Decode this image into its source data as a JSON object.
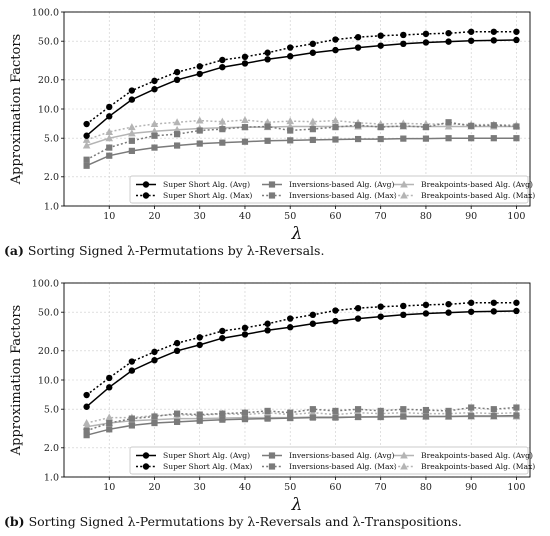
{
  "captions": [
    {
      "tag": "(a)",
      "text": "Sorting Signed λ-Permutations by λ-Reversals."
    },
    {
      "tag": "(b)",
      "text": "Sorting Signed λ-Permutations by λ-Reversals and λ-Transpositions."
    }
  ],
  "chart_data": [
    {
      "type": "line",
      "xlabel": "λ",
      "ylabel": "Approximation Factors",
      "yscale": "log",
      "xlim": [
        0,
        103
      ],
      "ylim": [
        1.0,
        100.0
      ],
      "xticks": [
        "10",
        "20",
        "30",
        "40",
        "50",
        "60",
        "70",
        "80",
        "90",
        "100"
      ],
      "yticks": [
        "1.0",
        "2.0",
        "5.0",
        "10.0",
        "20.0",
        "50.0",
        "100.0"
      ],
      "grid": true,
      "legend_position": "bottom-right",
      "x": [
        5,
        10,
        15,
        20,
        25,
        30,
        35,
        40,
        45,
        50,
        55,
        60,
        65,
        70,
        75,
        80,
        85,
        90,
        95,
        100
      ],
      "series": [
        {
          "name": "Super Short Alg. (Avg)",
          "color": "#000000",
          "dash": "solid",
          "marker": "circle",
          "values": [
            5.3,
            8.4,
            12.5,
            16.0,
            20.0,
            23.0,
            27.0,
            29.5,
            32.5,
            35.0,
            38.0,
            40.5,
            43.0,
            45.0,
            47.0,
            48.5,
            49.5,
            50.5,
            51.0,
            51.5
          ]
        },
        {
          "name": "Super Short Alg. (Max)",
          "color": "#000000",
          "dash": "dotted",
          "marker": "circle",
          "values": [
            7.0,
            10.5,
            15.5,
            19.5,
            24.0,
            27.5,
            32.0,
            34.5,
            38.0,
            43.0,
            47.0,
            52.0,
            55.0,
            57.0,
            58.0,
            59.5,
            60.5,
            62.5,
            62.5,
            62.5
          ]
        },
        {
          "name": "Inversions-based Alg. (Avg)",
          "color": "#7a7a7a",
          "dash": "solid",
          "marker": "square",
          "values": [
            2.6,
            3.3,
            3.7,
            4.0,
            4.2,
            4.4,
            4.5,
            4.6,
            4.7,
            4.75,
            4.8,
            4.85,
            4.9,
            4.9,
            4.95,
            4.95,
            5.0,
            5.0,
            5.0,
            5.0
          ]
        },
        {
          "name": "Inversions-based Alg. (Max)",
          "color": "#7a7a7a",
          "dash": "dotted",
          "marker": "square",
          "values": [
            3.0,
            4.0,
            4.7,
            5.3,
            5.5,
            6.0,
            6.2,
            6.5,
            6.6,
            6.0,
            6.2,
            6.5,
            6.8,
            6.5,
            6.7,
            6.5,
            7.3,
            6.7,
            6.8,
            6.6
          ]
        },
        {
          "name": "Breakpoints-based Alg. (Avg)",
          "color": "#b4b4b4",
          "dash": "solid",
          "marker": "triangle",
          "values": [
            4.2,
            5.0,
            5.6,
            5.9,
            6.1,
            6.3,
            6.4,
            6.5,
            6.5,
            6.6,
            6.6,
            6.6,
            6.6,
            6.6,
            6.6,
            6.6,
            6.6,
            6.6,
            6.6,
            6.6
          ]
        },
        {
          "name": "Breakpoints-based Alg. (Max)",
          "color": "#b4b4b4",
          "dash": "dotted",
          "marker": "triangle",
          "values": [
            4.8,
            5.8,
            6.5,
            7.0,
            7.3,
            7.6,
            7.4,
            7.7,
            7.3,
            7.5,
            7.4,
            7.6,
            7.2,
            7.0,
            7.1,
            7.0,
            7.0,
            6.9,
            6.9,
            6.8
          ]
        }
      ]
    },
    {
      "type": "line",
      "xlabel": "λ",
      "ylabel": "Approximation Factors",
      "yscale": "log",
      "xlim": [
        0,
        103
      ],
      "ylim": [
        1.0,
        100.0
      ],
      "xticks": [
        "10",
        "20",
        "30",
        "40",
        "50",
        "60",
        "70",
        "80",
        "90",
        "100"
      ],
      "yticks": [
        "1.0",
        "2.0",
        "5.0",
        "10.0",
        "20.0",
        "50.0",
        "100.0"
      ],
      "grid": true,
      "legend_position": "bottom-right",
      "x": [
        5,
        10,
        15,
        20,
        25,
        30,
        35,
        40,
        45,
        50,
        55,
        60,
        65,
        70,
        75,
        80,
        85,
        90,
        95,
        100
      ],
      "series": [
        {
          "name": "Super Short Alg. (Avg)",
          "color": "#000000",
          "dash": "solid",
          "marker": "circle",
          "values": [
            5.3,
            8.4,
            12.5,
            16.0,
            20.0,
            23.0,
            27.0,
            29.5,
            32.5,
            35.0,
            38.0,
            40.5,
            43.0,
            45.0,
            47.0,
            48.5,
            49.5,
            50.5,
            51.0,
            51.5
          ]
        },
        {
          "name": "Super Short Alg. (Max)",
          "color": "#000000",
          "dash": "dotted",
          "marker": "circle",
          "values": [
            7.0,
            10.5,
            15.5,
            19.5,
            24.0,
            27.5,
            32.0,
            34.5,
            38.0,
            43.0,
            47.0,
            52.0,
            55.0,
            57.0,
            58.0,
            59.5,
            60.5,
            62.5,
            62.5,
            62.5
          ]
        },
        {
          "name": "Inversions-based Alg. (Avg)",
          "color": "#7a7a7a",
          "dash": "solid",
          "marker": "square",
          "values": [
            2.7,
            3.1,
            3.4,
            3.6,
            3.7,
            3.8,
            3.9,
            3.95,
            4.0,
            4.05,
            4.1,
            4.1,
            4.15,
            4.15,
            4.2,
            4.2,
            4.2,
            4.25,
            4.25,
            4.3
          ]
        },
        {
          "name": "Inversions-based Alg. (Max)",
          "color": "#7a7a7a",
          "dash": "dotted",
          "marker": "square",
          "values": [
            3.0,
            3.6,
            4.0,
            4.2,
            4.5,
            4.4,
            4.5,
            4.6,
            4.8,
            4.6,
            5.0,
            4.8,
            5.0,
            4.8,
            5.0,
            4.9,
            4.8,
            5.2,
            5.0,
            5.2
          ]
        },
        {
          "name": "Breakpoints-based Alg. (Avg)",
          "color": "#b4b4b4",
          "dash": "solid",
          "marker": "triangle",
          "values": [
            3.3,
            3.6,
            3.8,
            3.9,
            4.0,
            4.0,
            4.05,
            4.1,
            4.1,
            4.1,
            4.15,
            4.15,
            4.15,
            4.2,
            4.2,
            4.2,
            4.2,
            4.2,
            4.2,
            4.2
          ]
        },
        {
          "name": "Breakpoints-based Alg. (Max)",
          "color": "#b4b4b4",
          "dash": "dotted",
          "marker": "triangle",
          "values": [
            3.6,
            4.1,
            4.1,
            4.3,
            4.4,
            4.3,
            4.5,
            4.4,
            4.6,
            4.4,
            4.6,
            4.4,
            4.6,
            4.5,
            4.6,
            4.5,
            4.5,
            4.6,
            4.5,
            4.6
          ]
        }
      ]
    }
  ]
}
